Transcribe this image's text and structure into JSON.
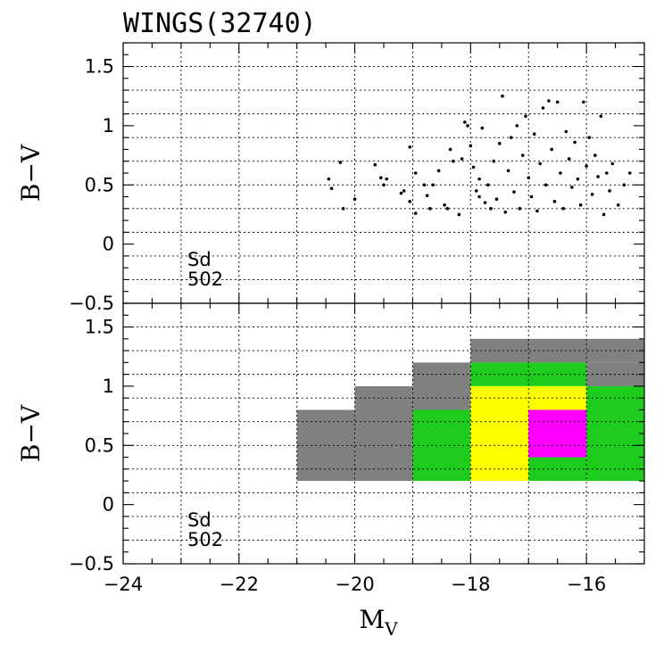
{
  "title": "WINGS(32740)",
  "chart_data": [
    {
      "type": "scatter",
      "panel": "top",
      "xlabel": "",
      "ylabel": "B−V",
      "xlim": [
        -24,
        -15
      ],
      "ylim": [
        -0.5,
        1.7
      ],
      "xticks": [
        -24,
        -22,
        -20,
        -18,
        -16
      ],
      "yticks": [
        -0.5,
        0,
        0.5,
        1,
        1.5
      ],
      "ytick_labels": [
        "−0.5",
        "0",
        "0.5",
        "1",
        "1.5"
      ],
      "grid": true,
      "annotation": {
        "type_label": "Sd",
        "count_label": "502"
      },
      "note": "dense scatter of ~500 galaxies; representative sample of read points",
      "points": [
        [
          -20.45,
          0.55
        ],
        [
          -20.4,
          0.47
        ],
        [
          -20.25,
          0.69
        ],
        [
          -20.2,
          0.3
        ],
        [
          -20.0,
          0.38
        ],
        [
          -19.65,
          0.67
        ],
        [
          -19.55,
          0.56
        ],
        [
          -19.5,
          0.5
        ],
        [
          -19.45,
          0.55
        ],
        [
          -19.2,
          0.43
        ],
        [
          -19.15,
          0.45
        ],
        [
          -19.05,
          0.82
        ],
        [
          -19.05,
          0.36
        ],
        [
          -18.95,
          0.6
        ],
        [
          -18.95,
          0.26
        ],
        [
          -18.8,
          0.5
        ],
        [
          -18.75,
          0.41
        ],
        [
          -18.7,
          0.3
        ],
        [
          -18.65,
          0.5
        ],
        [
          -18.55,
          0.62
        ],
        [
          -18.45,
          0.33
        ],
        [
          -18.4,
          0.3
        ],
        [
          -18.35,
          0.8
        ],
        [
          -18.3,
          0.7
        ],
        [
          -18.2,
          0.25
        ],
        [
          -18.15,
          0.72
        ],
        [
          -18.1,
          1.03
        ],
        [
          -18.05,
          1.0
        ],
        [
          -18.0,
          0.83
        ],
        [
          -17.95,
          0.65
        ],
        [
          -17.9,
          0.45
        ],
        [
          -17.85,
          0.4
        ],
        [
          -17.85,
          0.55
        ],
        [
          -17.8,
          0.98
        ],
        [
          -17.75,
          0.35
        ],
        [
          -17.7,
          0.5
        ],
        [
          -17.65,
          0.3
        ],
        [
          -17.6,
          0.7
        ],
        [
          -17.55,
          0.38
        ],
        [
          -17.5,
          0.85
        ],
        [
          -17.45,
          1.25
        ],
        [
          -17.4,
          0.27
        ],
        [
          -17.35,
          0.62
        ],
        [
          -17.3,
          0.9
        ],
        [
          -17.25,
          0.44
        ],
        [
          -17.2,
          1.0
        ],
        [
          -17.15,
          0.3
        ],
        [
          -17.1,
          0.75
        ],
        [
          -17.05,
          1.08
        ],
        [
          -17.0,
          0.56
        ],
        [
          -16.95,
          0.4
        ],
        [
          -16.9,
          0.93
        ],
        [
          -16.85,
          0.28
        ],
        [
          -16.8,
          0.68
        ],
        [
          -16.75,
          1.15
        ],
        [
          -16.7,
          0.5
        ],
        [
          -16.65,
          1.21
        ],
        [
          -16.6,
          0.8
        ],
        [
          -16.55,
          0.36
        ],
        [
          -16.5,
          1.2
        ],
        [
          -16.45,
          0.6
        ],
        [
          -16.4,
          0.3
        ],
        [
          -16.35,
          0.95
        ],
        [
          -16.3,
          0.72
        ],
        [
          -16.25,
          0.48
        ],
        [
          -16.2,
          0.86
        ],
        [
          -16.15,
          0.55
        ],
        [
          -16.1,
          0.33
        ],
        [
          -16.05,
          1.2
        ],
        [
          -16.0,
          0.66
        ],
        [
          -15.95,
          0.9
        ],
        [
          -15.9,
          0.42
        ],
        [
          -15.85,
          0.75
        ],
        [
          -15.8,
          0.57
        ],
        [
          -15.75,
          1.08
        ],
        [
          -15.7,
          0.25
        ],
        [
          -15.65,
          0.6
        ],
        [
          -15.6,
          0.45
        ],
        [
          -15.55,
          0.68
        ],
        [
          -15.45,
          0.33
        ],
        [
          -15.35,
          0.5
        ],
        [
          -15.25,
          0.6
        ]
      ]
    },
    {
      "type": "heatmap",
      "panel": "bottom",
      "xlabel": "M",
      "xlabel_sub": "V",
      "ylabel": "B−V",
      "xlim": [
        -24,
        -15
      ],
      "ylim": [
        -0.5,
        1.7
      ],
      "xticks": [
        -24,
        -22,
        -20,
        -18,
        -16
      ],
      "xtick_labels": [
        "−24",
        "−22",
        "−20",
        "−18",
        "−16"
      ],
      "yticks": [
        -0.5,
        0,
        0.5,
        1,
        1.5
      ],
      "ytick_labels": [
        "−0.5",
        "0",
        "0.5",
        "1",
        "1.5"
      ],
      "grid": true,
      "annotation": {
        "type_label": "Sd",
        "count_label": "502"
      },
      "palette": {
        "gray": "#808080",
        "green": "#1dcc1d",
        "yellow": "#ffff00",
        "magenta": "#ff00ff"
      },
      "cells": [
        {
          "x": [
            -21,
            -20
          ],
          "y": [
            0.2,
            0.8
          ],
          "color": "gray"
        },
        {
          "x": [
            -20,
            -19
          ],
          "y": [
            0.2,
            1.0
          ],
          "color": "gray"
        },
        {
          "x": [
            -19,
            -18
          ],
          "y": [
            0.8,
            1.2
          ],
          "color": "gray"
        },
        {
          "x": [
            -19,
            -18
          ],
          "y": [
            0.2,
            0.8
          ],
          "color": "green"
        },
        {
          "x": [
            -18,
            -15
          ],
          "y": [
            1.2,
            1.4
          ],
          "color": "gray"
        },
        {
          "x": [
            -16,
            -15
          ],
          "y": [
            1.0,
            1.2
          ],
          "color": "gray"
        },
        {
          "x": [
            -18,
            -16
          ],
          "y": [
            1.0,
            1.2
          ],
          "color": "green"
        },
        {
          "x": [
            -16,
            -15
          ],
          "y": [
            0.2,
            1.0
          ],
          "color": "green"
        },
        {
          "x": [
            -17,
            -16
          ],
          "y": [
            0.2,
            0.4
          ],
          "color": "green"
        },
        {
          "x": [
            -18,
            -17
          ],
          "y": [
            0.2,
            1.0
          ],
          "color": "yellow"
        },
        {
          "x": [
            -17,
            -16
          ],
          "y": [
            0.8,
            1.0
          ],
          "color": "yellow"
        },
        {
          "x": [
            -17,
            -16
          ],
          "y": [
            0.4,
            0.8
          ],
          "color": "magenta"
        }
      ]
    }
  ]
}
